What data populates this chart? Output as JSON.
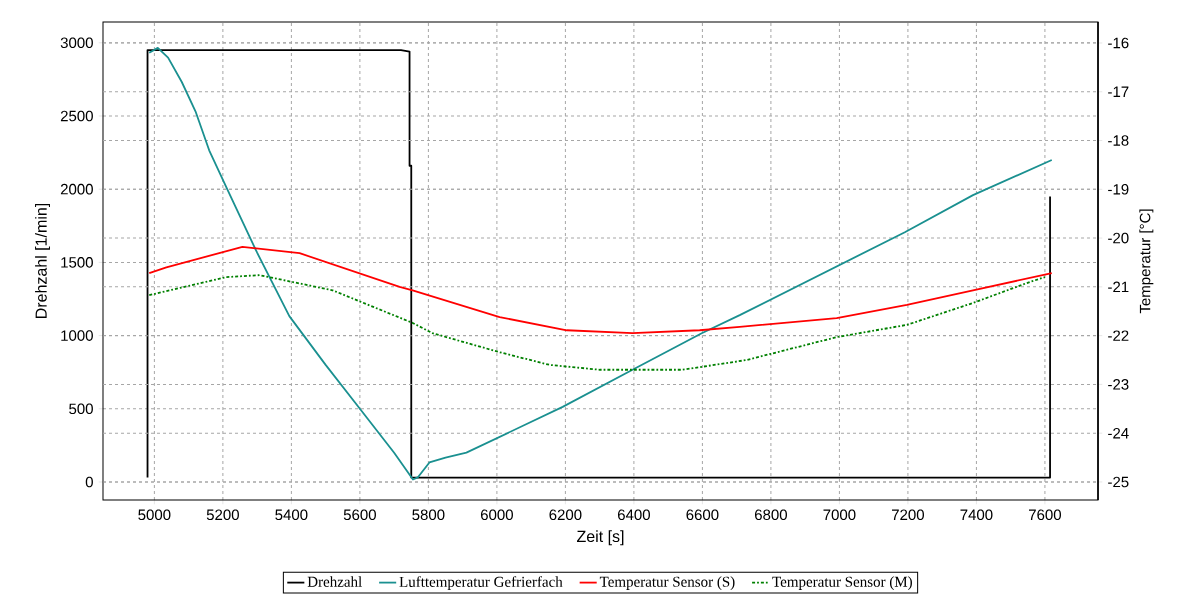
{
  "chart_data": {
    "type": "line",
    "xlabel": "Zeit [s]",
    "ylabel": "Drehzahl [1/min]",
    "y2label": "Temperatur [°C]",
    "xlim": [
      4850,
      7755
    ],
    "ylim": [
      -123,
      3142
    ],
    "y2lim": [
      -25.37,
      -15.57
    ],
    "xticks": [
      5000,
      5200,
      5400,
      5600,
      5800,
      6000,
      6200,
      6400,
      6600,
      6800,
      7000,
      7200,
      7400,
      7600
    ],
    "yticks": [
      0,
      500,
      1000,
      1500,
      2000,
      2500,
      3000
    ],
    "y2ticks": [
      -25,
      -24,
      -23,
      -22,
      -21,
      -20,
      -19,
      -18,
      -17,
      -16
    ],
    "grid": true,
    "legend": "bottom",
    "marker": "none",
    "series": [
      {
        "name": "Drehzahl",
        "color": "#000000",
        "line_style": "solid",
        "x": [
          4980,
          4980,
          5720,
          5745,
          5745,
          5750,
          5750,
          7615,
          7615
        ],
        "values": [
          30,
          2950,
          2950,
          2940,
          2160,
          2160,
          30,
          30,
          1950
        ]
      },
      {
        "name": "Lufttemperatur Gefrierfach",
        "color": "#1a9090",
        "line_style": "solid",
        "axis": "y2",
        "x": [
          4985,
          5010,
          5040,
          5080,
          5120,
          5160,
          5213,
          5300,
          5394,
          5500,
          5600,
          5700,
          5755,
          5770,
          5803,
          5850,
          5911,
          6192,
          6396,
          6598,
          6709,
          7191,
          7390,
          7620
        ],
        "values": [
          -16.2,
          -16.1,
          -16.3,
          -16.8,
          -17.4,
          -18.2,
          -19.0,
          -20.3,
          -21.6,
          -22.6,
          -23.5,
          -24.4,
          -24.95,
          -24.9,
          -24.6,
          -24.5,
          -24.4,
          -23.46,
          -22.7,
          -21.95,
          -21.58,
          -19.88,
          -19.12,
          -18.4
        ]
      },
      {
        "name": "Temperatur Sensor (S)",
        "color": "#ff0000",
        "line_style": "solid",
        "axis": "y2",
        "x": [
          4985,
          5035,
          5257,
          5424,
          5716,
          5754,
          6008,
          6204,
          6396,
          6592,
          6709,
          6992,
          7197,
          7390,
          7620
        ],
        "values": [
          -20.72,
          -20.6,
          -20.18,
          -20.31,
          -21.0,
          -21.07,
          -21.62,
          -21.89,
          -21.95,
          -21.89,
          -21.82,
          -21.64,
          -21.37,
          -21.07,
          -20.72
        ]
      },
      {
        "name": "Temperatur Sensor (M)",
        "color": "#008000",
        "line_style": "dashdot",
        "axis": "y2",
        "x": [
          4985,
          5210,
          5307,
          5520,
          5754,
          5812,
          6008,
          6154,
          6300,
          6542,
          6729,
          6992,
          7197,
          7390,
          7556,
          7600
        ],
        "values": [
          -21.17,
          -20.8,
          -20.76,
          -21.07,
          -21.74,
          -21.95,
          -22.34,
          -22.6,
          -22.7,
          -22.7,
          -22.5,
          -22.03,
          -21.78,
          -21.33,
          -20.9,
          -20.8
        ]
      }
    ]
  }
}
